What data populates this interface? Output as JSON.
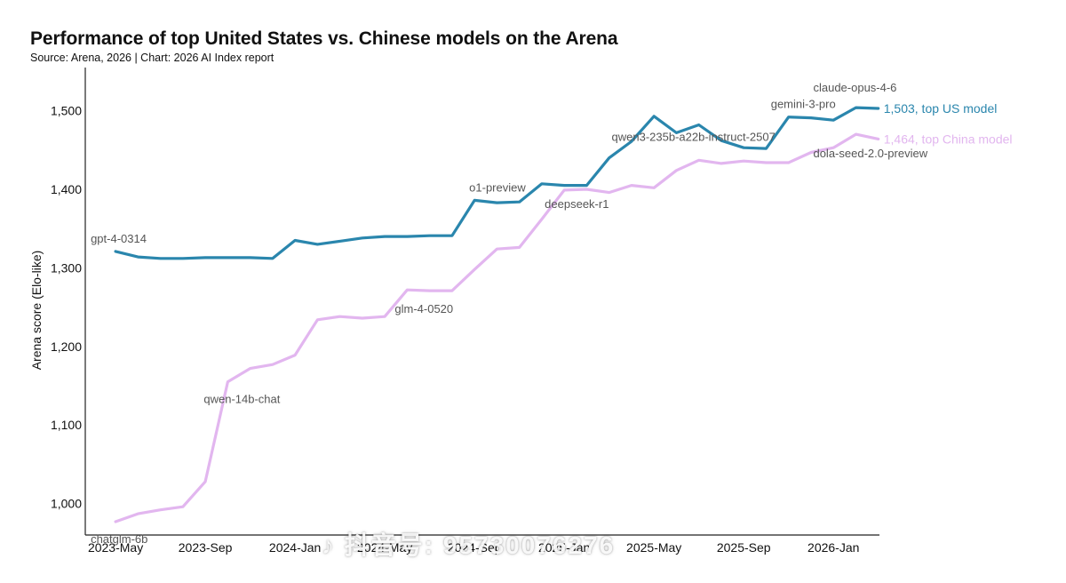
{
  "title": "Performance of top United States vs. Chinese models on the Arena",
  "subtitle": "Source: Arena, 2026 | Chart: 2026 AI Index report",
  "watermark": "♪ 抖音号: 95730076276",
  "chart_data": {
    "type": "line",
    "title": "Performance of top United States vs. Chinese models on the Arena",
    "ylabel": "Arena score (Elo-like)",
    "xlabel": "",
    "ylim": [
      960,
      1555
    ],
    "yticks": [
      1000,
      1100,
      1200,
      1300,
      1400,
      1500
    ],
    "ytick_labels": [
      "1,000",
      "1,100",
      "1,200",
      "1,300",
      "1,400",
      "1,500"
    ],
    "x_unit": "month",
    "xlim": [
      "2023-04",
      "2026-03"
    ],
    "xticks": [
      "2023-05",
      "2023-09",
      "2024-01",
      "2024-05",
      "2024-09",
      "2025-01",
      "2025-05",
      "2025-09",
      "2026-01"
    ],
    "xtick_labels": [
      "2023-May",
      "2023-Sep",
      "2024-Jan",
      "2024-May",
      "2024-Sep",
      "2025-Jan",
      "2025-May",
      "2025-Sep",
      "2026-Jan"
    ],
    "grid": false,
    "legend": "none",
    "series": [
      {
        "name": "top US model",
        "color": "#2a86ad",
        "points": [
          [
            "2023-05",
            1321
          ],
          [
            "2023-06",
            1314
          ],
          [
            "2023-07",
            1312
          ],
          [
            "2023-08",
            1312
          ],
          [
            "2023-09",
            1313
          ],
          [
            "2023-10",
            1313
          ],
          [
            "2023-11",
            1313
          ],
          [
            "2023-12",
            1312
          ],
          [
            "2024-01",
            1335
          ],
          [
            "2024-02",
            1330
          ],
          [
            "2024-03",
            1334
          ],
          [
            "2024-04",
            1338
          ],
          [
            "2024-05",
            1340
          ],
          [
            "2024-06",
            1340
          ],
          [
            "2024-07",
            1341
          ],
          [
            "2024-08",
            1341
          ],
          [
            "2024-09",
            1386
          ],
          [
            "2024-10",
            1383
          ],
          [
            "2024-11",
            1384
          ],
          [
            "2024-12",
            1407
          ],
          [
            "2025-01",
            1405
          ],
          [
            "2025-02",
            1405
          ],
          [
            "2025-03",
            1440
          ],
          [
            "2025-04",
            1461
          ],
          [
            "2025-05",
            1493
          ],
          [
            "2025-06",
            1472
          ],
          [
            "2025-07",
            1482
          ],
          [
            "2025-08",
            1462
          ],
          [
            "2025-09",
            1453
          ],
          [
            "2025-10",
            1452
          ],
          [
            "2025-11",
            1492
          ],
          [
            "2025-12",
            1491
          ],
          [
            "2026-01",
            1488
          ],
          [
            "2026-02",
            1504
          ],
          [
            "2026-03",
            1503
          ]
        ]
      },
      {
        "name": "top China model",
        "color": "#e2b6ef",
        "points": [
          [
            "2023-05",
            977
          ],
          [
            "2023-06",
            987
          ],
          [
            "2023-07",
            992
          ],
          [
            "2023-08",
            996
          ],
          [
            "2023-09",
            1028
          ],
          [
            "2023-10",
            1155
          ],
          [
            "2023-11",
            1172
          ],
          [
            "2023-12",
            1177
          ],
          [
            "2024-01",
            1189
          ],
          [
            "2024-02",
            1234
          ],
          [
            "2024-03",
            1238
          ],
          [
            "2024-04",
            1236
          ],
          [
            "2024-05",
            1238
          ],
          [
            "2024-06",
            1272
          ],
          [
            "2024-07",
            1271
          ],
          [
            "2024-08",
            1271
          ],
          [
            "2024-09",
            1298
          ],
          [
            "2024-10",
            1324
          ],
          [
            "2024-11",
            1326
          ],
          [
            "2024-12",
            1362
          ],
          [
            "2025-01",
            1399
          ],
          [
            "2025-02",
            1400
          ],
          [
            "2025-03",
            1396
          ],
          [
            "2025-04",
            1405
          ],
          [
            "2025-05",
            1402
          ],
          [
            "2025-06",
            1424
          ],
          [
            "2025-07",
            1437
          ],
          [
            "2025-08",
            1433
          ],
          [
            "2025-09",
            1436
          ],
          [
            "2025-10",
            1434
          ],
          [
            "2025-11",
            1434
          ],
          [
            "2025-12",
            1447
          ],
          [
            "2026-01",
            1453
          ],
          [
            "2026-02",
            1470
          ],
          [
            "2026-03",
            1464
          ]
        ]
      }
    ],
    "annotations": [
      {
        "text": "gpt-4-0314",
        "x": "2023-05",
        "y": 1321,
        "series": "top US model"
      },
      {
        "text": "o1-preview",
        "x": "2024-09",
        "y": 1386,
        "series": "top US model"
      },
      {
        "text": "gemini-3-pro",
        "x": "2025-11",
        "y": 1492,
        "series": "top US model"
      },
      {
        "text": "claude-opus-4-6",
        "x": "2026-02",
        "y": 1504,
        "series": "top US model"
      },
      {
        "text": "chatglm-6b",
        "x": "2023-05",
        "y": 977,
        "series": "top China model"
      },
      {
        "text": "qwen-14b-chat",
        "x": "2023-10",
        "y": 1155,
        "series": "top China model"
      },
      {
        "text": "glm-4-0520",
        "x": "2024-06",
        "y": 1272,
        "series": "top China model"
      },
      {
        "text": "deepseek-r1",
        "x": "2025-01",
        "y": 1399,
        "series": "top China model"
      },
      {
        "text": "qwen3-235b-a22b-instruct-2507",
        "x": "2025-07",
        "y": 1437,
        "series": "top China model"
      },
      {
        "text": "dola-seed-2.0-preview",
        "x": "2026-02",
        "y": 1470,
        "series": "top China model"
      }
    ],
    "end_labels": [
      {
        "text": "1,503, top US model",
        "series": "top US model",
        "y": 1503
      },
      {
        "text": "1,464, top China model",
        "series": "top China model",
        "y": 1464
      }
    ]
  }
}
